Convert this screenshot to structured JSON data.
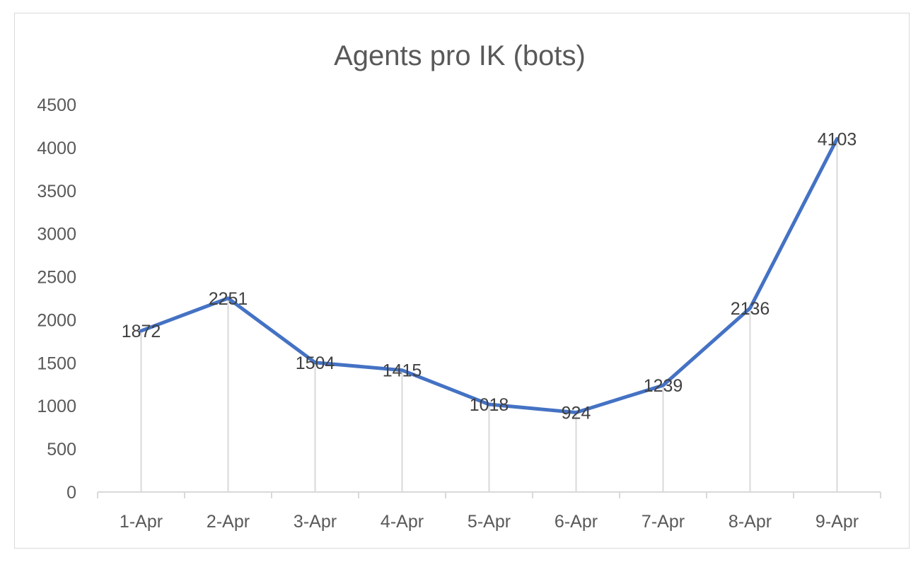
{
  "chart_data": {
    "type": "line",
    "title": "Agents pro IK (bots)",
    "categories": [
      "1-Apr",
      "2-Apr",
      "3-Apr",
      "4-Apr",
      "5-Apr",
      "6-Apr",
      "7-Apr",
      "8-Apr",
      "9-Apr"
    ],
    "series": [
      {
        "values": [
          1872,
          2251,
          1504,
          1415,
          1018,
          924,
          1239,
          2136,
          4103
        ],
        "color": "#4472c4"
      }
    ],
    "ylim": [
      0,
      4500
    ],
    "yticks": [
      0,
      500,
      1000,
      1500,
      2000,
      2500,
      3000,
      3500,
      4000,
      4500
    ],
    "data_labels": true,
    "drop_lines": true,
    "grid": false,
    "legend": "none"
  }
}
